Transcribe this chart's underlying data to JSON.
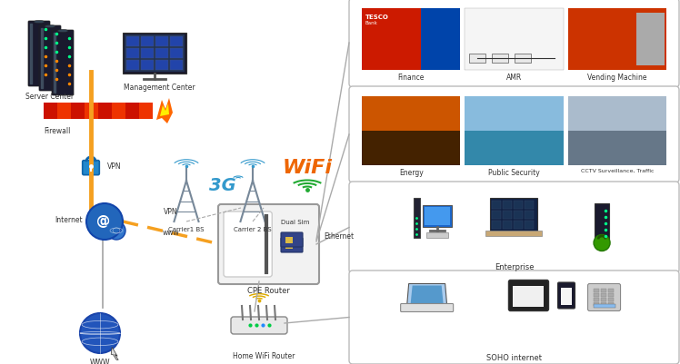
{
  "bg_color": "#ffffff",
  "labels": {
    "server_center": "Server Center",
    "management_center": "Management Center",
    "firewall": "Firewall",
    "vpn": "VPN",
    "internet": "Internet",
    "www": "WWW",
    "vpn_line": "VPN",
    "www_line": "www",
    "carrier1": "Carrier1 BS",
    "carrier2": "Carrier 2 BS",
    "wifi": "WiFi",
    "dual_sim": "Dual Sim",
    "cpe_router": "CPE Router",
    "ethernet": "Ethernet",
    "home_wifi": "Home WiFi Router",
    "finance": "Finance",
    "amr": "AMR",
    "vending": "Vending Machine",
    "energy": "Energy",
    "public_security": "Public Security",
    "cctv": "CCTV Surveillance, Traffic",
    "enterprise": "Enterprise",
    "soho": "SOHO internet"
  },
  "colors": {
    "orange": "#f5a020",
    "blue_dark": "#2255aa",
    "blue_med": "#3399cc",
    "gray_line": "#aaaaaa",
    "gray_dark": "#555555",
    "firewall_red1": "#cc1100",
    "firewall_red2": "#ee3300",
    "firewall_orange": "#ff6600",
    "flame_yellow": "#ffcc00",
    "box_border": "#bbbbbb",
    "tower_gray": "#778899",
    "finance_red": "#cc2200",
    "finance_blue": "#1144aa",
    "energy_orange": "#cc5500",
    "energy_blue": "#2277cc",
    "sec_blue": "#5599cc",
    "cctv_gray": "#8899aa",
    "ent_blue": "#3355aa",
    "ent_dark": "#223355",
    "soho_blue": "#6699cc",
    "soho_gray": "#999999",
    "soho_dark": "#555566",
    "green_wifi": "#22aa33",
    "yellow_wifi": "#ddaa00"
  },
  "layout": {
    "fig_w": 7.48,
    "fig_h": 4.02,
    "dpi": 100
  }
}
